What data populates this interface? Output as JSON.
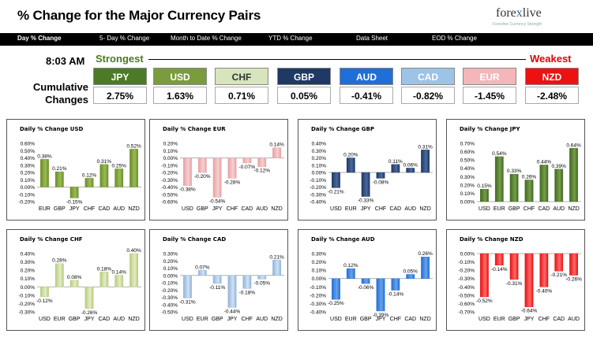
{
  "header": {
    "title": "% Change for the Major Currency Pairs",
    "logo_pre": "fore",
    "logo_x": "x",
    "logo_post": "live",
    "logo_tagline": "Forexlive Currency Strength"
  },
  "nav": {
    "items": [
      "Day % Change",
      "5- Day % Change",
      "Month to Date % Change",
      "YTD % Change",
      "Data Sheet",
      "EOD % Change"
    ]
  },
  "summary": {
    "time": "8:03 AM",
    "strongest_label": "Strongest",
    "weakest_label": "Weakest",
    "cumulative_label_1": "Cumulative",
    "cumulative_label_2": "Changes",
    "currencies": [
      {
        "code": "JPY",
        "value": "2.75%",
        "color": "#4c7a26"
      },
      {
        "code": "USD",
        "value": "1.63%",
        "color": "#7a9c3c"
      },
      {
        "code": "CHF",
        "value": "0.71%",
        "color": "#d8e4bc"
      },
      {
        "code": "GBP",
        "value": "0.05%",
        "color": "#1f3864"
      },
      {
        "code": "AUD",
        "value": "-0.41%",
        "color": "#1f6fd6"
      },
      {
        "code": "CAD",
        "value": "-0.82%",
        "color": "#9dc3e6"
      },
      {
        "code": "EUR",
        "value": "-1.45%",
        "color": "#f4b6b8"
      },
      {
        "code": "NZD",
        "value": "-2.48%",
        "color": "#ee1111"
      }
    ]
  },
  "chart_data": [
    {
      "type": "bar",
      "title": "Daily % Change USD",
      "color": "#6b8e23",
      "color2": "#9bbb59",
      "categories": [
        "EUR",
        "GBP",
        "JPY",
        "CHF",
        "CAD",
        "AUD",
        "NZD"
      ],
      "values": [
        0.38,
        0.21,
        -0.15,
        0.12,
        0.31,
        0.25,
        0.52
      ],
      "labels": [
        "0.38%",
        "0.21%",
        "-0.15%",
        "0.12%",
        "0.31%",
        "0.25%",
        "0.52%"
      ],
      "ylim": [
        -0.2,
        0.6
      ],
      "yticks": [
        "0.60%",
        "0.50%",
        "0.40%",
        "0.30%",
        "0.20%",
        "0.10%",
        "0.00%",
        "-0.10%",
        "-0.20%"
      ]
    },
    {
      "type": "bar",
      "title": "Daily % Change EUR",
      "color": "#e8a0a3",
      "color2": "#f6d1d2",
      "categories": [
        "USD",
        "GBP",
        "JPY",
        "CHF",
        "CAD",
        "AUD",
        "NZD"
      ],
      "values": [
        -0.38,
        -0.2,
        -0.54,
        -0.28,
        -0.07,
        -0.12,
        0.14
      ],
      "labels": [
        "-0.38%",
        "-0.20%",
        "-0.54%",
        "-0.28%",
        "-0.07%",
        "-0.12%",
        "0.14%"
      ],
      "ylim": [
        -0.6,
        0.2
      ],
      "yticks": [
        "0.20%",
        "0.10%",
        "0.00%",
        "-0.10%",
        "-0.20%",
        "-0.30%",
        "-0.40%",
        "-0.50%",
        "-0.60%"
      ]
    },
    {
      "type": "bar",
      "title": "Daily % Change GBP",
      "color": "#1f3864",
      "color2": "#4a6a9e",
      "categories": [
        "USD",
        "EUR",
        "JPY",
        "CHF",
        "CAD",
        "AUD",
        "NZD"
      ],
      "values": [
        -0.21,
        0.2,
        -0.33,
        -0.08,
        0.11,
        0.06,
        0.31
      ],
      "labels": [
        "-0.21%",
        "0.20%",
        "-0.33%",
        "-0.08%",
        "0.11%",
        "0.06%",
        "0.31%"
      ],
      "ylim": [
        -0.4,
        0.4
      ],
      "yticks": [
        "0.40%",
        "0.30%",
        "0.20%",
        "0.10%",
        "0.00%",
        "-0.10%",
        "-0.20%",
        "-0.30%",
        "-0.40%"
      ]
    },
    {
      "type": "bar",
      "title": "Daily % Change JPY",
      "color": "#3e6b1f",
      "color2": "#7a9c4c",
      "categories": [
        "USD",
        "EUR",
        "GBP",
        "CHF",
        "CAD",
        "AUD",
        "NZD"
      ],
      "values": [
        0.15,
        0.54,
        0.33,
        0.26,
        0.44,
        0.39,
        0.64
      ],
      "labels": [
        "0.15%",
        "0.54%",
        "0.33%",
        "0.26%",
        "0.44%",
        "0.39%",
        "0.64%"
      ],
      "ylim": [
        0.0,
        0.7
      ],
      "yticks": [
        "0.70%",
        "0.60%",
        "0.50%",
        "0.40%",
        "0.30%",
        "0.20%",
        "0.10%",
        "0.00%"
      ]
    },
    {
      "type": "bar",
      "title": "Daily % Change CHF",
      "color": "#b5cc7a",
      "color2": "#e4ecc8",
      "categories": [
        "USD",
        "EUR",
        "GBP",
        "JPY",
        "CAD",
        "AUD",
        "NZD"
      ],
      "values": [
        -0.12,
        0.28,
        0.08,
        -0.26,
        0.18,
        0.14,
        0.4
      ],
      "labels": [
        "-0.12%",
        "0.28%",
        "0.08%",
        "-0.26%",
        "0.18%",
        "0.14%",
        "0.40%"
      ],
      "ylim": [
        -0.3,
        0.4
      ],
      "yticks": [
        "0.40%",
        "0.30%",
        "0.20%",
        "0.10%",
        "0.00%",
        "-0.10%",
        "-0.20%",
        "-0.30%"
      ]
    },
    {
      "type": "bar",
      "title": "Daily % Change CAD",
      "color": "#8fb4dc",
      "color2": "#d2e2f2",
      "categories": [
        "USD",
        "EUR",
        "GBP",
        "JPY",
        "CHF",
        "AUD",
        "NZD"
      ],
      "values": [
        -0.31,
        0.07,
        -0.11,
        -0.44,
        -0.18,
        -0.05,
        0.21
      ],
      "labels": [
        "-0.31%",
        "0.07%",
        "-0.11%",
        "-0.44%",
        "-0.18%",
        "-0.05%",
        "0.21%"
      ],
      "ylim": [
        -0.5,
        0.3
      ],
      "yticks": [
        "0.30%",
        "0.20%",
        "0.10%",
        "0.00%",
        "-0.10%",
        "-0.20%",
        "-0.30%",
        "-0.40%",
        "-0.50%"
      ]
    },
    {
      "type": "bar",
      "title": "Daily % Change AUD",
      "color": "#1f6fd6",
      "color2": "#6aa2ea",
      "categories": [
        "USD",
        "EUR",
        "GBP",
        "JPY",
        "CHF",
        "CAD",
        "NZD"
      ],
      "values": [
        -0.25,
        0.12,
        -0.06,
        -0.39,
        -0.14,
        0.05,
        0.26
      ],
      "labels": [
        "-0.25%",
        "0.12%",
        "-0.06%",
        "-0.39%",
        "-0.14%",
        "0.05%",
        "0.26%"
      ],
      "ylim": [
        -0.4,
        0.3
      ],
      "yticks": [
        "0.30%",
        "0.20%",
        "0.10%",
        "0.00%",
        "-0.10%",
        "-0.20%",
        "-0.30%",
        "-0.40%"
      ]
    },
    {
      "type": "bar",
      "title": "Daily % Change NZD",
      "color": "#e81010",
      "color2": "#ff6a6a",
      "categories": [
        "USD",
        "EUR",
        "GBP",
        "JPY",
        "CHF",
        "CAD",
        "AUD"
      ],
      "values": [
        -0.52,
        -0.14,
        -0.31,
        -0.64,
        -0.4,
        -0.21,
        -0.26
      ],
      "labels": [
        "-0.52%",
        "-0.14%",
        "-0.31%",
        "-0.64%",
        "-0.40%",
        "-0.21%",
        "-0.26%"
      ],
      "ylim": [
        -0.7,
        0.0
      ],
      "yticks": [
        "0.00%",
        "-0.10%",
        "-0.20%",
        "-0.30%",
        "-0.40%",
        "-0.50%",
        "-0.60%",
        "-0.70%"
      ]
    }
  ]
}
